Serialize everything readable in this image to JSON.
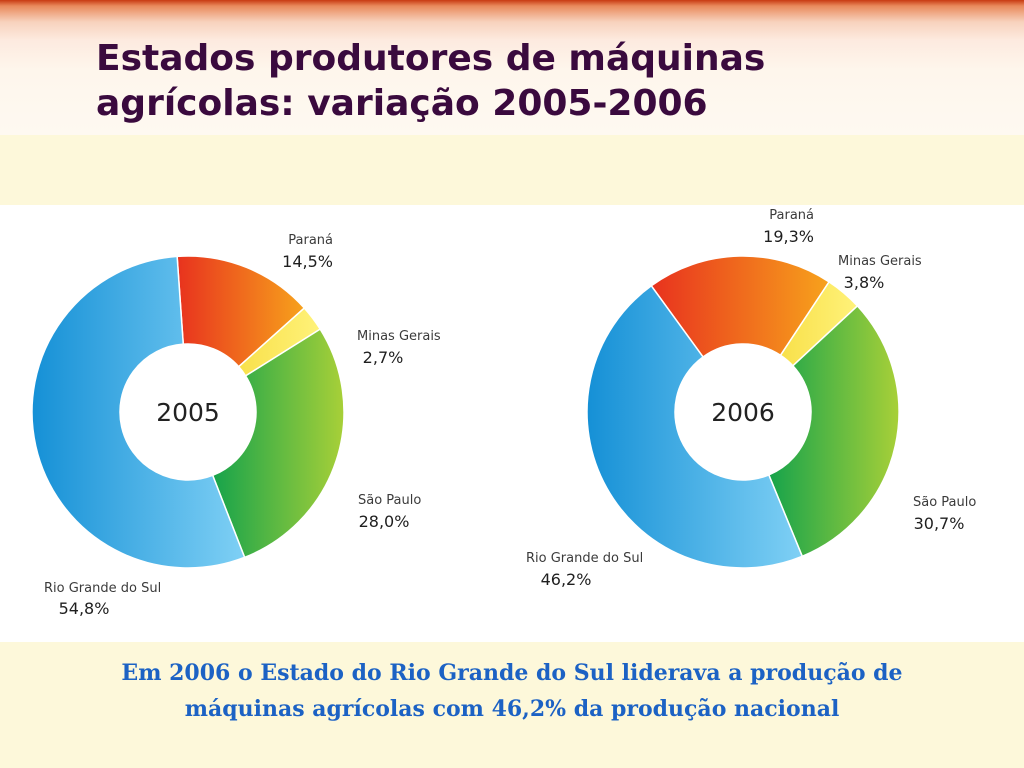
{
  "header": {
    "title_line1": "Estados produtores de máquinas",
    "title_line2": "agrícolas: variação 2005-2006"
  },
  "footer": {
    "caption_line1": "Em 2006 o Estado do Rio Grande do Sul liderava a produção de",
    "caption_line2": "máquinas agrícolas com 46,2% da produção nacional"
  },
  "colors": {
    "title": "#3a0a3e",
    "caption": "#1c62c4",
    "background": "#fdf8da",
    "panel": "#ffffff"
  },
  "chart_data": [
    {
      "type": "pie",
      "center_label": "2005",
      "labels": [
        "Paraná",
        "Minas Gerais",
        "São Paulo",
        "Rio Grande do Sul"
      ],
      "value_labels": [
        "14,5%",
        "2,7%",
        "28,0%",
        "54,8%"
      ],
      "values": [
        14.5,
        2.7,
        28.0,
        54.8
      ],
      "colors": [
        "#f15a24",
        "#fbe14a",
        "#3fae3c",
        "#2a9ad8"
      ]
    },
    {
      "type": "pie",
      "center_label": "2006",
      "labels": [
        "Paraná",
        "Minas Gerais",
        "São Paulo",
        "Rio Grande do Sul"
      ],
      "value_labels": [
        "19,3%",
        "3,8%",
        "30,7%",
        "46,2%"
      ],
      "values": [
        19.3,
        3.8,
        30.7,
        46.2
      ],
      "colors": [
        "#f15a24",
        "#fbe14a",
        "#3fae3c",
        "#2a9ad8"
      ]
    }
  ]
}
